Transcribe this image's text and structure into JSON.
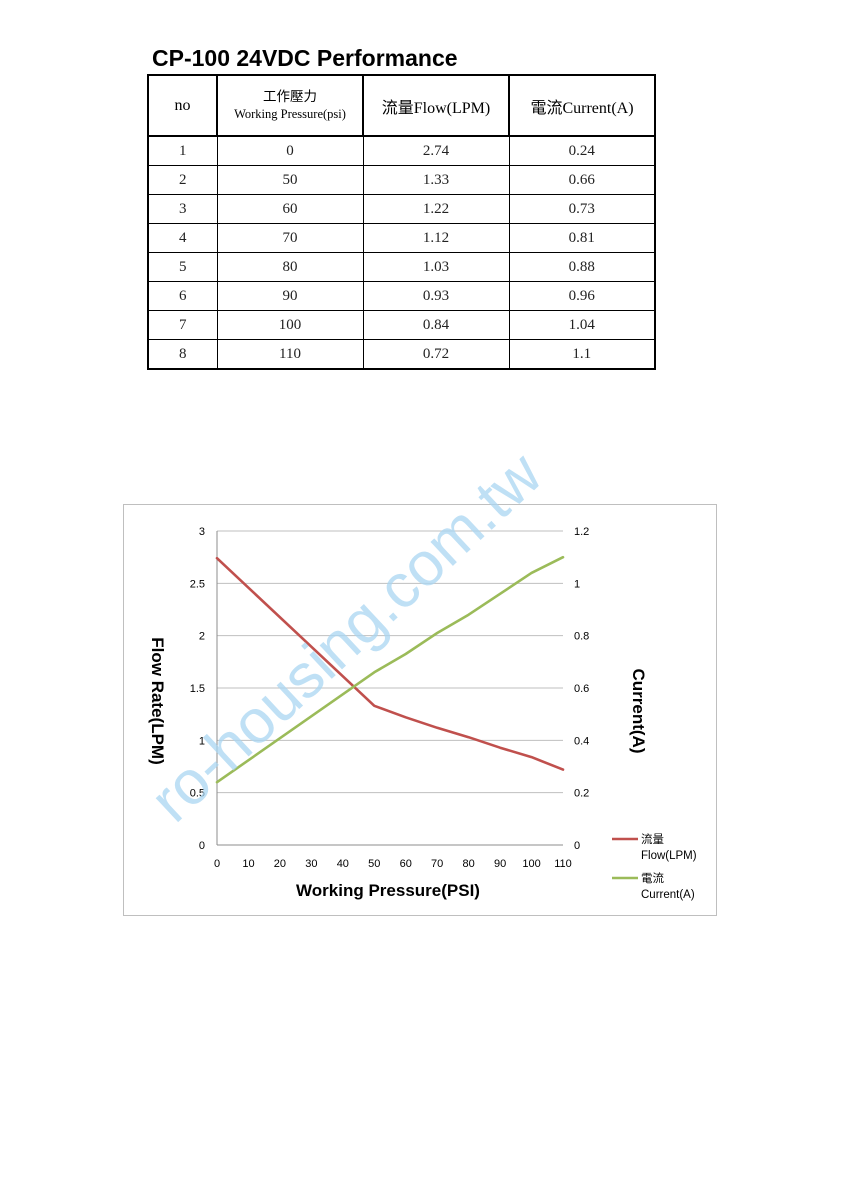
{
  "title": "CP-100 24VDC Performance",
  "table": {
    "headers": {
      "no": "no",
      "pressure_zh": "工作壓力",
      "pressure_en": "Working Pressure(psi)",
      "flow": "流量Flow(LPM)",
      "current": "電流Current(A)"
    },
    "rows": [
      [
        "1",
        "0",
        "2.74",
        "0.24"
      ],
      [
        "2",
        "50",
        "1.33",
        "0.66"
      ],
      [
        "3",
        "60",
        "1.22",
        "0.73"
      ],
      [
        "4",
        "70",
        "1.12",
        "0.81"
      ],
      [
        "5",
        "80",
        "1.03",
        "0.88"
      ],
      [
        "6",
        "90",
        "0.93",
        "0.96"
      ],
      [
        "7",
        "100",
        "0.84",
        "1.04"
      ],
      [
        "8",
        "110",
        "0.72",
        "1.1"
      ]
    ]
  },
  "chart_data": {
    "type": "line",
    "xlabel": "Working Pressure(PSI)",
    "ylabel": "Flow Rate(LPM)",
    "y2label": "Current(A)",
    "x": [
      0,
      50,
      60,
      70,
      80,
      90,
      100,
      110
    ],
    "x_ticks": [
      "0",
      "10",
      "20",
      "30",
      "40",
      "50",
      "60",
      "70",
      "80",
      "90",
      "100",
      "110"
    ],
    "xlim": [
      0,
      110
    ],
    "ylim": [
      0,
      3
    ],
    "y_ticks": [
      "0",
      "0.5",
      "1",
      "1.5",
      "2",
      "2.5",
      "3"
    ],
    "y2lim": [
      0,
      1.2
    ],
    "y2_ticks": [
      "0",
      "0.2",
      "0.4",
      "0.6",
      "0.8",
      "1",
      "1.2"
    ],
    "grid": true,
    "legend_position": "right",
    "series": [
      {
        "name": "流量 Flow(LPM)",
        "name_line1": "流量",
        "name_line2": "Flow(LPM)",
        "axis": "left",
        "color": "#c0504d",
        "values": [
          2.74,
          1.33,
          1.22,
          1.12,
          1.03,
          0.93,
          0.84,
          0.72
        ]
      },
      {
        "name": "電流 Current(A)",
        "name_line1": "電流",
        "name_line2": "Current(A)",
        "axis": "right",
        "color": "#9bbb59",
        "values": [
          0.24,
          0.66,
          0.73,
          0.81,
          0.88,
          0.96,
          1.04,
          1.1
        ]
      }
    ]
  },
  "watermark": "ro-housing.com.tw"
}
